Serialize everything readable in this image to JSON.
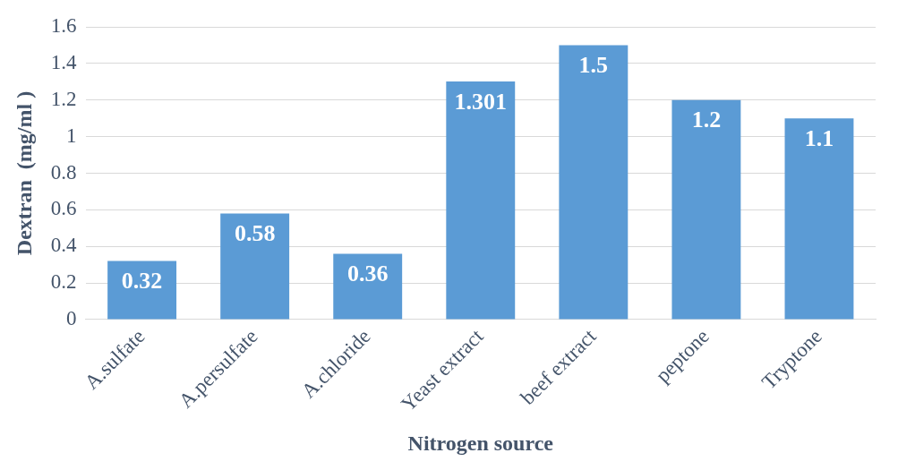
{
  "chart_data": {
    "type": "bar",
    "xlabel": "Nitrogen source",
    "ylabel": "Dextran  (mg/ml )",
    "categories": [
      "A.sulfate",
      "A.persulfate",
      "A.chloride",
      "Yeast extract",
      "beef extract",
      "peptone",
      "Tryptone"
    ],
    "values": [
      0.32,
      0.58,
      0.36,
      1.301,
      1.5,
      1.2,
      1.1
    ],
    "color": "#5b9bd5",
    "ylim": [
      0,
      1.6
    ],
    "yticks": [
      0,
      0.2,
      0.4,
      0.6,
      0.8,
      1,
      1.2,
      1.4,
      1.6
    ],
    "grid": "y",
    "data_labels": true,
    "legend": false
  }
}
